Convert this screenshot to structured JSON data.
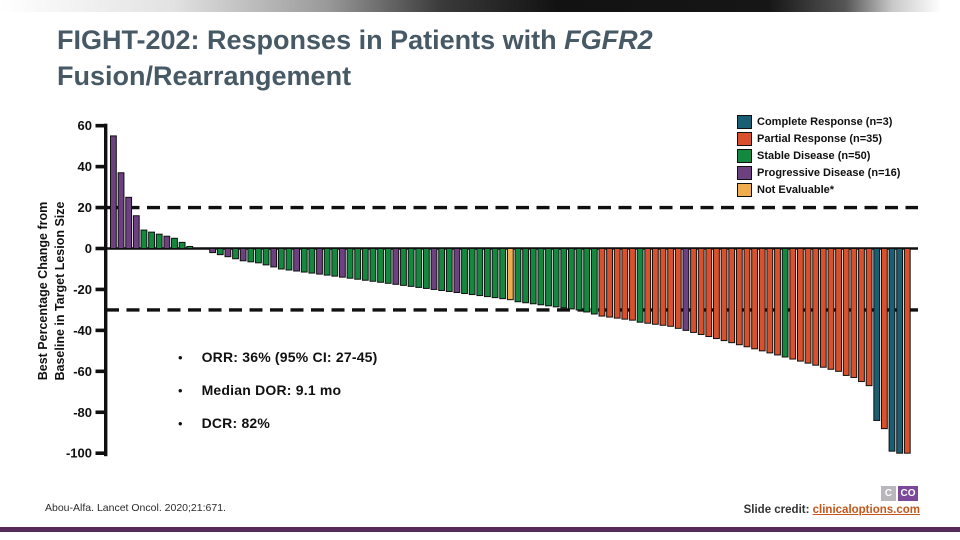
{
  "slide": {
    "title_part1": "FIGHT-202: Responses in Patients with ",
    "title_part2_italic": "FGFR2",
    "title_line2": "Fusion/Rearrangement"
  },
  "legend": {
    "items": [
      {
        "key": "CR",
        "label": "Complete Response (n=3)",
        "color": "#1a5e74"
      },
      {
        "key": "PR",
        "label": "Partial Response (n=35)",
        "color": "#d9512c"
      },
      {
        "key": "SD",
        "label": "Stable Disease (n=50)",
        "color": "#14883f"
      },
      {
        "key": "PD",
        "label": "Progressive Disease (n=16)",
        "color": "#6d4080"
      },
      {
        "key": "NE",
        "label": "Not Evaluable*",
        "color": "#efae4e"
      }
    ]
  },
  "chart_data": {
    "type": "bar",
    "subtype": "waterfall",
    "title": "",
    "xlabel": "",
    "ylabel_line1": "Best Percentage Change from",
    "ylabel_line2": "Baseline in Target Lesion Size",
    "ylim": [
      -100,
      60
    ],
    "yticks": [
      60,
      40,
      20,
      0,
      -20,
      -40,
      -60,
      -80,
      -100
    ],
    "reference_lines": [
      20,
      -30
    ],
    "grid": false,
    "legend_position": "top-right",
    "colors": {
      "CR": "#1a5e74",
      "PR": "#d9512c",
      "SD": "#14883f",
      "PD": "#6d4080",
      "NE": "#efae4e"
    },
    "bars": [
      [
        55,
        "PD"
      ],
      [
        37,
        "PD"
      ],
      [
        25,
        "PD"
      ],
      [
        16,
        "PD"
      ],
      [
        9,
        "SD"
      ],
      [
        8,
        "SD"
      ],
      [
        7,
        "SD"
      ],
      [
        6,
        "PD"
      ],
      [
        5,
        "SD"
      ],
      [
        3,
        "SD"
      ],
      [
        1,
        "SD"
      ],
      [
        0,
        "SD"
      ],
      [
        0,
        "SD"
      ],
      [
        -2,
        "PD"
      ],
      [
        -3,
        "SD"
      ],
      [
        -4,
        "PD"
      ],
      [
        -5,
        "SD"
      ],
      [
        -6,
        "PD"
      ],
      [
        -6.5,
        "SD"
      ],
      [
        -7,
        "SD"
      ],
      [
        -8,
        "SD"
      ],
      [
        -9,
        "PD"
      ],
      [
        -10,
        "SD"
      ],
      [
        -10.5,
        "SD"
      ],
      [
        -11,
        "PD"
      ],
      [
        -11.5,
        "SD"
      ],
      [
        -12,
        "SD"
      ],
      [
        -12.5,
        "PD"
      ],
      [
        -13,
        "SD"
      ],
      [
        -13.5,
        "SD"
      ],
      [
        -14,
        "PD"
      ],
      [
        -14.5,
        "SD"
      ],
      [
        -15,
        "SD"
      ],
      [
        -15.5,
        "SD"
      ],
      [
        -16,
        "SD"
      ],
      [
        -16.5,
        "SD"
      ],
      [
        -17,
        "SD"
      ],
      [
        -17.5,
        "PD"
      ],
      [
        -18,
        "SD"
      ],
      [
        -18.5,
        "SD"
      ],
      [
        -19,
        "SD"
      ],
      [
        -19.5,
        "SD"
      ],
      [
        -20,
        "PD"
      ],
      [
        -20.5,
        "SD"
      ],
      [
        -21,
        "SD"
      ],
      [
        -21.5,
        "PD"
      ],
      [
        -22,
        "SD"
      ],
      [
        -22.5,
        "SD"
      ],
      [
        -23,
        "SD"
      ],
      [
        -23.5,
        "SD"
      ],
      [
        -24,
        "SD"
      ],
      [
        -24.5,
        "SD"
      ],
      [
        -25,
        "NE"
      ],
      [
        -26,
        "SD"
      ],
      [
        -26.5,
        "SD"
      ],
      [
        -27,
        "SD"
      ],
      [
        -27.5,
        "SD"
      ],
      [
        -28,
        "SD"
      ],
      [
        -28.5,
        "SD"
      ],
      [
        -29,
        "SD"
      ],
      [
        -29.5,
        "SD"
      ],
      [
        -30,
        "SD"
      ],
      [
        -31,
        "SD"
      ],
      [
        -32,
        "SD"
      ],
      [
        -33,
        "PR"
      ],
      [
        -33.5,
        "PR"
      ],
      [
        -34,
        "PR"
      ],
      [
        -34.5,
        "PR"
      ],
      [
        -35,
        "PR"
      ],
      [
        -36,
        "SD"
      ],
      [
        -36.5,
        "PR"
      ],
      [
        -37,
        "PR"
      ],
      [
        -37.5,
        "PR"
      ],
      [
        -38,
        "PR"
      ],
      [
        -39,
        "PR"
      ],
      [
        -40,
        "PD"
      ],
      [
        -41,
        "PR"
      ],
      [
        -42,
        "PR"
      ],
      [
        -43,
        "PR"
      ],
      [
        -44,
        "PR"
      ],
      [
        -45,
        "PR"
      ],
      [
        -46,
        "PR"
      ],
      [
        -47,
        "PR"
      ],
      [
        -48,
        "PR"
      ],
      [
        -49,
        "PR"
      ],
      [
        -50,
        "PR"
      ],
      [
        -51,
        "PR"
      ],
      [
        -52,
        "PR"
      ],
      [
        -53,
        "SD"
      ],
      [
        -54,
        "PR"
      ],
      [
        -55,
        "PR"
      ],
      [
        -56,
        "PR"
      ],
      [
        -57,
        "PR"
      ],
      [
        -58,
        "PR"
      ],
      [
        -59,
        "PR"
      ],
      [
        -60,
        "PR"
      ],
      [
        -62,
        "PR"
      ],
      [
        -63,
        "PR"
      ],
      [
        -65,
        "PR"
      ],
      [
        -67,
        "PR"
      ],
      [
        -84,
        "CR"
      ],
      [
        -88,
        "PR"
      ],
      [
        -99,
        "CR"
      ],
      [
        -100,
        "CR"
      ],
      [
        -100,
        "PR"
      ]
    ]
  },
  "bullets": [
    "ORR: 36% (95% CI: 27-45)",
    "Median DOR: 9.1 mo",
    "DCR: 82%"
  ],
  "footer": {
    "citation": "Abou-Alfa. Lancet Oncol. 2020;21:671.",
    "credit_label": "Slide credit: ",
    "credit_link": "clinicaloptions.com",
    "logo_c": "C",
    "logo_co": "CO"
  }
}
